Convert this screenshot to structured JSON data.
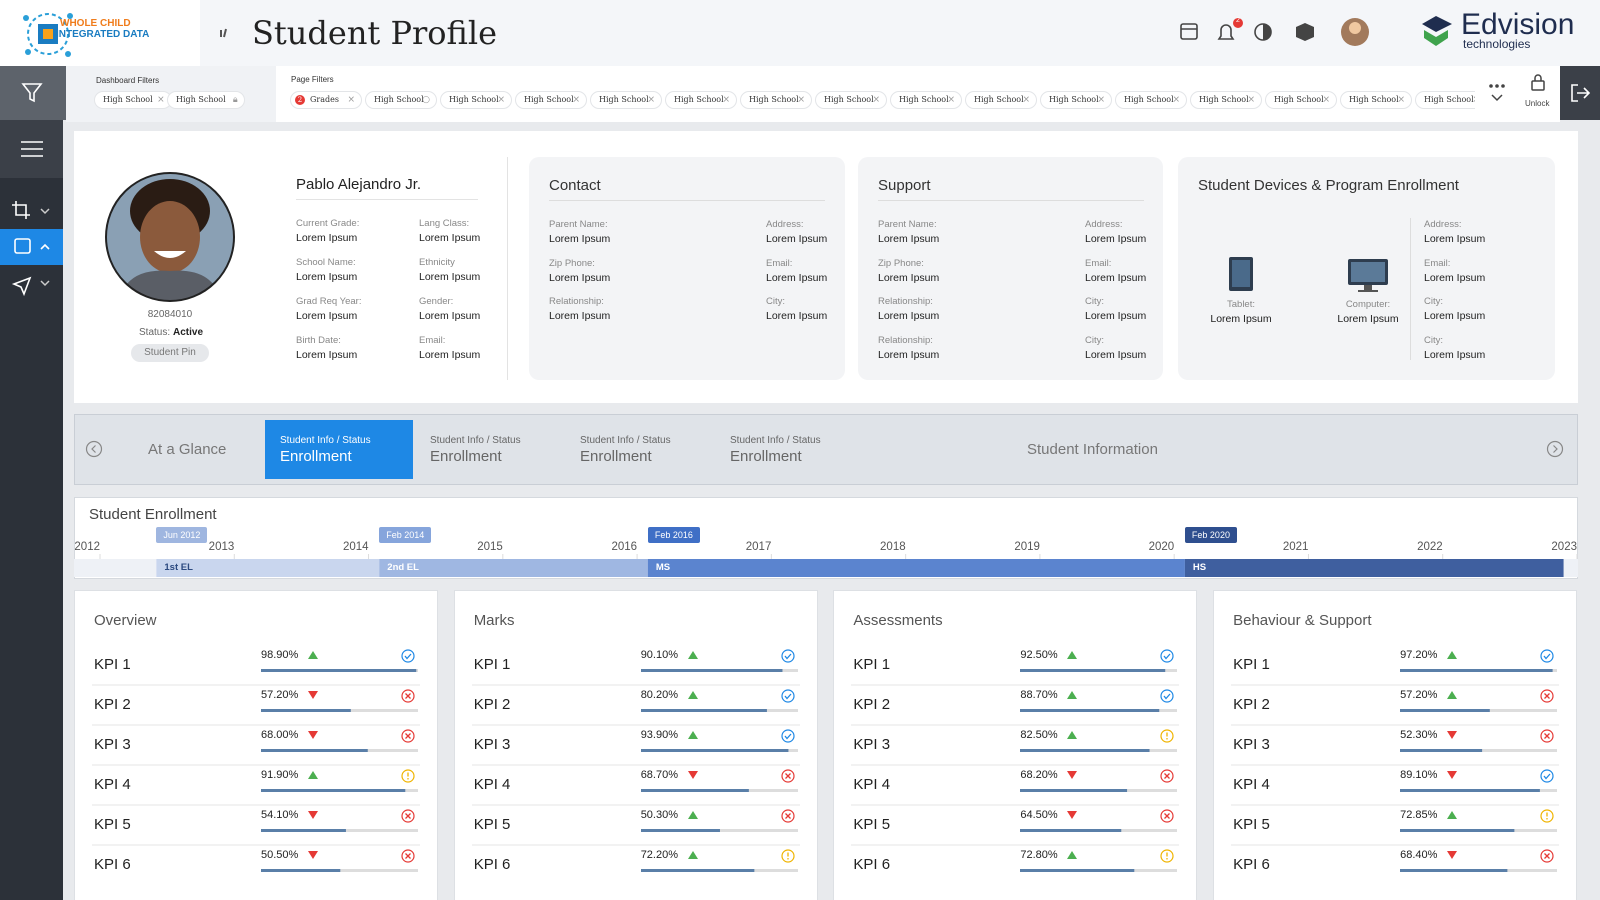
{
  "header": {
    "logo_lines": [
      "WHOLE CHILD",
      "INTEGRATED DATA"
    ],
    "title": "Student Profile",
    "notifications": "2",
    "brand": "Edvision",
    "brand_sub": "technologies"
  },
  "filters": {
    "dashboard_label": "Dashboard Filters",
    "dashboard_chips": [
      "High School",
      "High School"
    ],
    "page_label": "Page Filters",
    "page_chips": [
      {
        "text": "Grades",
        "badge": "2"
      },
      {
        "text": "High School"
      },
      {
        "text": "High School"
      },
      {
        "text": "High School"
      },
      {
        "text": "High School"
      },
      {
        "text": "High School"
      },
      {
        "text": "High School"
      },
      {
        "text": "High School"
      },
      {
        "text": "High School"
      },
      {
        "text": "High School"
      },
      {
        "text": "High School"
      },
      {
        "text": "High School"
      },
      {
        "text": "High School"
      },
      {
        "text": "High School"
      },
      {
        "text": "High School"
      },
      {
        "text": "High School"
      }
    ],
    "unlock": "Unlock"
  },
  "profile": {
    "name": "Pablo Alejandro Jr.",
    "id": "82084010",
    "status_label": "Status:",
    "status": "Active",
    "pin": "Student Pin",
    "fields": [
      {
        "label": "Current Grade:",
        "value": "Lorem Ipsum"
      },
      {
        "label": "Lang Class:",
        "value": "Lorem Ipsum"
      },
      {
        "label": "School Name:",
        "value": "Lorem Ipsum"
      },
      {
        "label": "Ethnicity",
        "value": "Lorem Ipsum"
      },
      {
        "label": "Grad Req Year:",
        "value": "Lorem Ipsum"
      },
      {
        "label": "Gender:",
        "value": "Lorem Ipsum"
      },
      {
        "label": "Birth Date:",
        "value": "Lorem Ipsum"
      },
      {
        "label": "Email:",
        "value": "Lorem Ipsum"
      }
    ]
  },
  "contact": {
    "title": "Contact",
    "fields": [
      {
        "label": "Parent Name:",
        "value": "Lorem Ipsum"
      },
      {
        "label": "Address:",
        "value": "Lorem Ipsum"
      },
      {
        "label": "Zip Phone:",
        "value": "Lorem Ipsum"
      },
      {
        "label": "Email:",
        "value": "Lorem Ipsum"
      },
      {
        "label": "Relationship:",
        "value": "Lorem Ipsum"
      },
      {
        "label": "City:",
        "value": "Lorem Ipsum"
      }
    ]
  },
  "support": {
    "title": "Support",
    "fields": [
      {
        "label": "Parent Name:",
        "value": "Lorem Ipsum"
      },
      {
        "label": "Address:",
        "value": "Lorem Ipsum"
      },
      {
        "label": "Zip Phone:",
        "value": "Lorem Ipsum"
      },
      {
        "label": "Email:",
        "value": "Lorem Ipsum"
      },
      {
        "label": "Relationship:",
        "value": "Lorem Ipsum"
      },
      {
        "label": "City:",
        "value": "Lorem Ipsum"
      },
      {
        "label": "Relationship:",
        "value": "Lorem Ipsum"
      },
      {
        "label": "City:",
        "value": "Lorem Ipsum"
      }
    ]
  },
  "devices": {
    "title": "Student Devices & Program Enrollment",
    "items": [
      {
        "label": "Tablet:",
        "value": "Lorem Ipsum"
      },
      {
        "label": "Computer:",
        "value": "Lorem Ipsum"
      }
    ],
    "fields": [
      {
        "label": "Address:",
        "value": "Lorem Ipsum"
      },
      {
        "label": "Email:",
        "value": "Lorem Ipsum"
      },
      {
        "label": "City:",
        "value": "Lorem Ipsum"
      },
      {
        "label": "City:",
        "value": "Lorem Ipsum"
      }
    ]
  },
  "tabs": [
    {
      "text": "At a Glance"
    },
    {
      "sub": "Student Info / Status",
      "text": "Enrollment",
      "active": true
    },
    {
      "sub": "Student Info / Status",
      "text": "Enrollment"
    },
    {
      "sub": "Student Info / Status",
      "text": "Enrollment"
    },
    {
      "sub": "Student Info / Status",
      "text": "Enrollment"
    },
    {
      "text": "Student Information"
    }
  ],
  "enrollment": {
    "title": "Student Enrollment",
    "xlim": [
      2012,
      2023
    ],
    "xticks": [
      2012,
      2013,
      2014,
      2015,
      2016,
      2017,
      2018,
      2019,
      2020,
      2021,
      2022,
      2023
    ],
    "periods": [
      {
        "name": "1st EL",
        "start_label": "Jun 2012",
        "start": 2012.42,
        "end": 2014.08,
        "color": "#c9d6ee",
        "tag_color": "#9fb6e0"
      },
      {
        "name": "2nd EL",
        "start_label": "Feb 2014",
        "start": 2014.08,
        "end": 2016.08,
        "color": "#9fb7e2",
        "tag_color": "#86a5dc"
      },
      {
        "name": "MS",
        "start_label": "Feb 2016",
        "start": 2016.08,
        "end": 2020.08,
        "color": "#5b84cf",
        "tag_color": "#3f6fc6"
      },
      {
        "name": "HS",
        "start_label": "Feb 2020",
        "start": 2020.08,
        "end": 2022.9,
        "color": "#3f5f9f",
        "tag_color": "#2f4f8f"
      }
    ]
  },
  "kpis": {
    "max": 100,
    "panels": [
      {
        "title": "Overview",
        "categories": [
          "KPI 1",
          "KPI 2",
          "KPI 3",
          "KPI 4",
          "KPI 5",
          "KPI 6"
        ],
        "values": [
          98.9,
          57.2,
          68,
          91.9,
          54.1,
          50.5
        ],
        "value_labels": [
          "98.90%",
          "57.20%",
          "68.00%",
          "91.90%",
          "54.10%",
          "50.50%"
        ],
        "trends": [
          "up",
          "down",
          "down",
          "up",
          "down",
          "down"
        ],
        "statuses": [
          "ok",
          "bad",
          "bad",
          "warn",
          "bad",
          "bad"
        ]
      },
      {
        "title": "Marks",
        "categories": [
          "KPI 1",
          "KPI 2",
          "KPI 3",
          "KPI 4",
          "KPI 5",
          "KPI 6"
        ],
        "values": [
          90.1,
          80.2,
          93.9,
          68.7,
          50.3,
          72.2
        ],
        "value_labels": [
          "90.10%",
          "80.20%",
          "93.90%",
          "68.70%",
          "50.30%",
          "72.20%"
        ],
        "trends": [
          "up",
          "up",
          "up",
          "down",
          "up",
          "up"
        ],
        "statuses": [
          "ok",
          "ok",
          "ok",
          "bad",
          "bad",
          "warn"
        ]
      },
      {
        "title": "Assessments",
        "categories": [
          "KPI 1",
          "KPI 2",
          "KPI 3",
          "KPI 4",
          "KPI 5",
          "KPI 6"
        ],
        "values": [
          92.5,
          88.7,
          82.5,
          68.2,
          64.5,
          72.8
        ],
        "value_labels": [
          "92.50%",
          "88.70%",
          "82.50%",
          "68.20%",
          "64.50%",
          "72.80%"
        ],
        "trends": [
          "up",
          "up",
          "up",
          "down",
          "down",
          "up"
        ],
        "statuses": [
          "ok",
          "ok",
          "warn",
          "bad",
          "bad",
          "warn"
        ]
      },
      {
        "title": "Behaviour & Support",
        "categories": [
          "KPI 1",
          "KPI 2",
          "KPI 3",
          "KPI 4",
          "KPI 5",
          "KPI 6"
        ],
        "values": [
          97.2,
          57.2,
          52.3,
          89.1,
          72.85,
          68.4
        ],
        "value_labels": [
          "97.20%",
          "57.20%",
          "52.30%",
          "89.10%",
          "72.85%",
          "68.40%"
        ],
        "trends": [
          "up",
          "up",
          "down",
          "down",
          "up",
          "down"
        ],
        "statuses": [
          "ok",
          "bad",
          "bad",
          "ok",
          "warn",
          "bad"
        ]
      }
    ]
  }
}
